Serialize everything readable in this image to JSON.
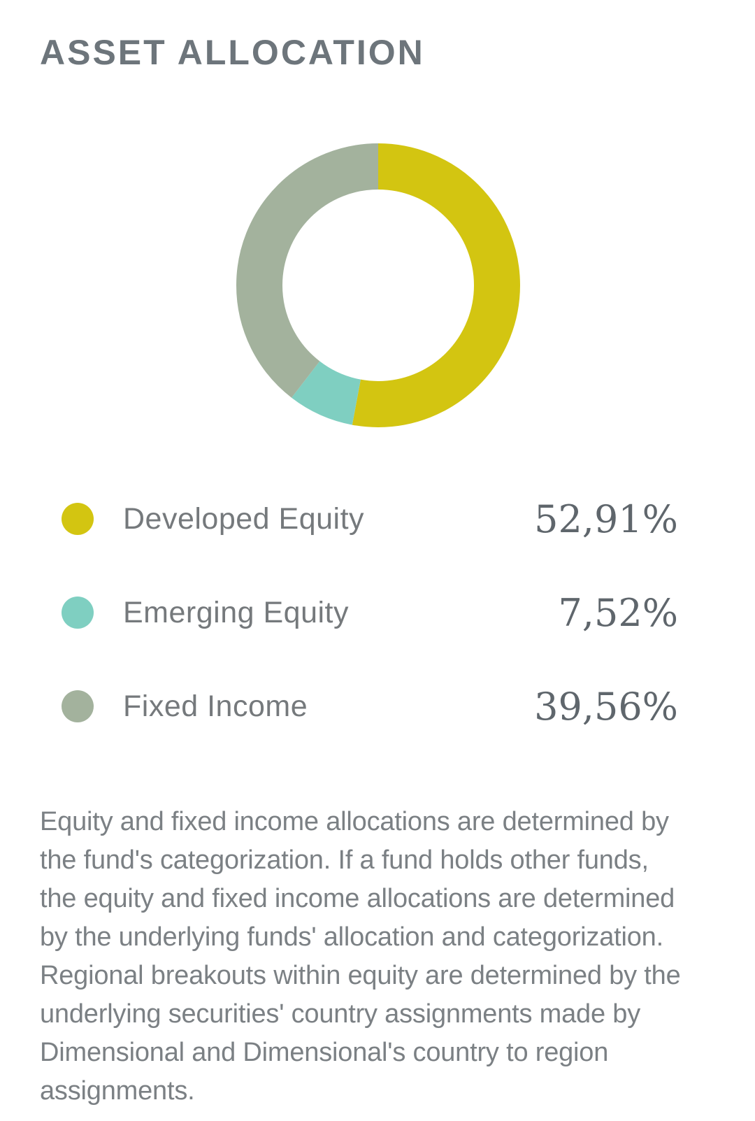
{
  "title": "ASSET ALLOCATION",
  "chart_data": {
    "type": "donut",
    "title": "ASSET ALLOCATION",
    "unit": "%",
    "decimal_separator": ",",
    "start_angle_deg": 0,
    "direction": "clockwise",
    "inner_radius_ratio": 0.675,
    "legend_position": "below",
    "series": [
      {
        "label": "Developed Equity",
        "value": 52.91,
        "display_value": "52,91%",
        "color": "#d3c511"
      },
      {
        "label": "Emerging Equity",
        "value": 7.52,
        "display_value": "7,52%",
        "color": "#7fcfc1"
      },
      {
        "label": "Fixed Income",
        "value": 39.56,
        "display_value": "39,56%",
        "color": "#a3b29d"
      }
    ]
  },
  "footnote": "Equity and fixed income allocations are determined by the fund's categorization. If a fund holds other funds, the equity and fixed income allocations are determined by the underlying funds' allocation and categorization. Regional breakouts within equity are determined by the underlying securities' country assignments made by Dimensional and Dimensional's country to region assignments.",
  "colors": {
    "background": "#ffffff",
    "title_text": "#6d757b",
    "label_text": "#75797c",
    "value_text": "#5f666c",
    "footnote_text": "#7b8084",
    "donut_hole": "#ffffff"
  }
}
